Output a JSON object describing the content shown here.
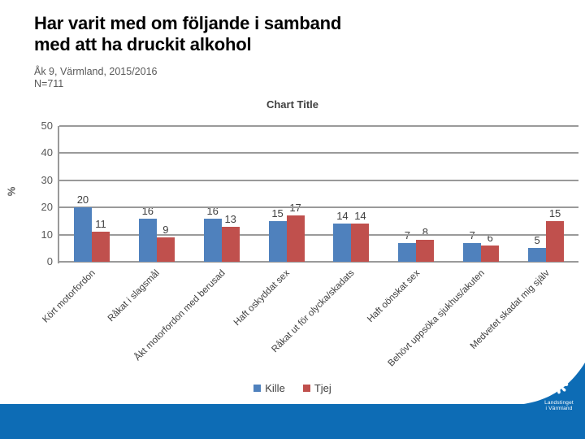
{
  "header": {
    "title_line1": "Har varit med om följande i samband",
    "title_line2": "med att ha druckit alkohol",
    "subtitle_line1": "Åk 9, Värmland, 2015/2016",
    "subtitle_line2": "N=711"
  },
  "chart_data": {
    "type": "bar",
    "title": "Chart Title",
    "ylabel": "%",
    "ylim": [
      0,
      50
    ],
    "yticks": [
      0,
      10,
      20,
      30,
      40,
      50
    ],
    "grid": true,
    "legend_position": "bottom",
    "categories": [
      "Kört motorfordon",
      "Råkat i slagsmål",
      "Åkt motorfordon med  berusad",
      "Haft oskyddat sex",
      "Råkat ut för olycka/skadats",
      "Haft oönskat sex",
      "Behövt uppsöka sjukhus/akuten",
      "Medvetet skadat mig själv"
    ],
    "series": [
      {
        "name": "Kille",
        "color": "#4f81bd",
        "values": [
          20,
          16,
          16,
          15,
          14,
          7,
          7,
          5
        ]
      },
      {
        "name": "Tjej",
        "color": "#c0504d",
        "values": [
          11,
          9,
          13,
          17,
          14,
          8,
          6,
          15
        ]
      }
    ]
  },
  "footer": {
    "logo_flower": "❋",
    "logo_line1": "Landstinget",
    "logo_line2": "i Värmland",
    "band_color": "#0d6cb5"
  },
  "colors": {
    "gridline": "#9a9a9a",
    "kille_blue": "#4f81bd",
    "tjej_red": "#c0504d",
    "band_blue": "#0d6cb5"
  }
}
